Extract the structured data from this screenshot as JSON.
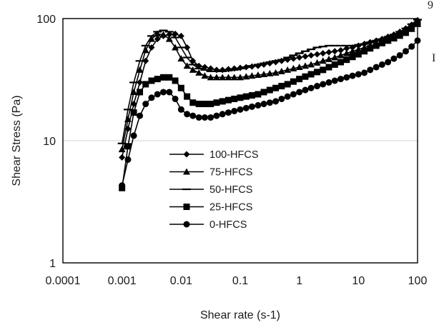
{
  "chart_data": {
    "type": "line",
    "title": "",
    "xlabel": "Shear rate (s-1)",
    "ylabel": "Shear Stress (Pa)",
    "xscale": "log",
    "yscale": "log",
    "xlim": [
      0.0001,
      100
    ],
    "ylim": [
      1,
      100
    ],
    "x_ticks": [
      "0.0001",
      "0.001",
      "0.01",
      "0.1",
      "1",
      "10",
      "100"
    ],
    "y_ticks": [
      "1",
      "10",
      "100"
    ],
    "grid": {
      "y": true,
      "x": false
    },
    "legend": {
      "position": "inside-lower-left"
    },
    "series": [
      {
        "name": "100-HFCS",
        "marker": "diamond",
        "x": [
          0.001,
          0.00126,
          0.00158,
          0.002,
          0.00251,
          0.00316,
          0.00398,
          0.00501,
          0.00631,
          0.00794,
          0.01,
          0.0126,
          0.0158,
          0.02,
          0.0251,
          0.0316,
          0.0398,
          0.0501,
          0.0631,
          0.0794,
          0.1,
          0.126,
          0.158,
          0.2,
          0.251,
          0.316,
          0.398,
          0.501,
          0.631,
          0.794,
          1,
          1.26,
          1.58,
          2,
          2.51,
          3.16,
          3.98,
          5.01,
          6.31,
          7.94,
          10,
          12.6,
          15.8,
          20,
          25.1,
          31.6,
          39.8,
          50.1,
          63.1,
          79.4,
          100
        ],
        "y": [
          7.3,
          12.5,
          20,
          30,
          45,
          58,
          68,
          72,
          74,
          75,
          72,
          58,
          45,
          41,
          40,
          39,
          38,
          38,
          38.5,
          39,
          39.5,
          40,
          40.5,
          41,
          42,
          43,
          44,
          45,
          46,
          47,
          48,
          49,
          50,
          51,
          52,
          53,
          54,
          55,
          57,
          58,
          60,
          62,
          64,
          66,
          68,
          71,
          74,
          78,
          83,
          89,
          97
        ]
      },
      {
        "name": "75-HFCS",
        "marker": "triangle",
        "x": [
          0.001,
          0.00126,
          0.00158,
          0.002,
          0.00251,
          0.00316,
          0.00398,
          0.00501,
          0.00631,
          0.00794,
          0.01,
          0.0126,
          0.0158,
          0.02,
          0.0251,
          0.0316,
          0.0398,
          0.0501,
          0.0631,
          0.0794,
          0.1,
          0.126,
          0.158,
          0.2,
          0.251,
          0.316,
          0.398,
          0.501,
          0.631,
          0.794,
          1,
          1.26,
          1.58,
          2,
          2.51,
          3.16,
          3.98,
          5.01,
          6.31,
          7.94,
          10,
          12.6,
          15.8,
          20,
          25.1,
          31.6,
          39.8,
          50.1,
          63.1,
          79.4,
          100
        ],
        "y": [
          8.5,
          15,
          25,
          38,
          55,
          68,
          75,
          74,
          68,
          58,
          47,
          41,
          38,
          36,
          34,
          33,
          33,
          33,
          33,
          33,
          33,
          33.5,
          34,
          34.5,
          35,
          35.5,
          36,
          37,
          38,
          39,
          40,
          41,
          42,
          43.5,
          45,
          46.5,
          48,
          50,
          52,
          54,
          56,
          58,
          60,
          62,
          64,
          66,
          69,
          72,
          76,
          82,
          90
        ]
      },
      {
        "name": "50-HFCS",
        "marker": "dash",
        "x": [
          0.001,
          0.00126,
          0.00158,
          0.002,
          0.00251,
          0.00316,
          0.00398,
          0.00501,
          0.00631,
          0.00794,
          0.01,
          0.0126,
          0.0158,
          0.02,
          0.0251,
          0.0316,
          0.0398,
          0.0501,
          0.0631,
          0.0794,
          0.1,
          0.126,
          0.158,
          0.2,
          0.251,
          0.316,
          0.398,
          0.501,
          0.631,
          0.794,
          1,
          1.26,
          1.58,
          2,
          2.51,
          3.16,
          3.98,
          5.01,
          6.31,
          7.94,
          10,
          12.6,
          15.8,
          20,
          25.1,
          31.6,
          39.8,
          50.1,
          63.1,
          79.4,
          100
        ],
        "y": [
          9.5,
          18,
          30,
          45,
          60,
          72,
          78,
          80,
          78,
          70,
          58,
          48,
          42,
          39,
          38,
          37,
          37,
          37,
          37.5,
          38,
          39,
          40,
          41,
          42,
          43,
          44,
          45,
          46,
          48,
          50,
          52,
          54,
          56,
          58,
          59,
          60,
          60,
          60,
          60,
          60,
          61,
          62,
          64,
          66,
          68,
          71,
          74,
          78,
          83,
          90,
          98
        ]
      },
      {
        "name": "25-HFCS",
        "marker": "square",
        "x": [
          0.001,
          0.00126,
          0.00158,
          0.002,
          0.00251,
          0.00316,
          0.00398,
          0.00501,
          0.00631,
          0.00794,
          0.01,
          0.0126,
          0.0158,
          0.02,
          0.0251,
          0.0316,
          0.0398,
          0.0501,
          0.0631,
          0.0794,
          0.1,
          0.126,
          0.158,
          0.2,
          0.251,
          0.316,
          0.398,
          0.501,
          0.631,
          0.794,
          1,
          1.26,
          1.58,
          2,
          2.51,
          3.16,
          3.98,
          5.01,
          6.31,
          7.94,
          10,
          12.6,
          15.8,
          20,
          25.1,
          31.6,
          39.8,
          50.1,
          63.1,
          79.4,
          100
        ],
        "y": [
          4.1,
          9,
          17,
          25,
          29,
          31,
          32,
          33,
          33,
          31,
          27,
          23,
          20.5,
          20,
          20,
          20,
          20.5,
          21,
          21.5,
          22,
          22.5,
          23,
          23.5,
          24,
          25,
          26,
          27,
          28,
          29,
          30.5,
          32,
          33.5,
          35,
          36.5,
          38,
          40,
          42,
          44,
          46,
          48.5,
          51,
          54,
          57,
          60,
          63,
          66,
          69,
          73,
          78,
          85,
          92
        ]
      },
      {
        "name": "0-HFCS",
        "marker": "circle",
        "x": [
          0.001,
          0.00126,
          0.00158,
          0.002,
          0.00251,
          0.00316,
          0.00398,
          0.00501,
          0.00631,
          0.00794,
          0.01,
          0.0126,
          0.0158,
          0.02,
          0.0251,
          0.0316,
          0.0398,
          0.0501,
          0.0631,
          0.0794,
          0.1,
          0.126,
          0.158,
          0.2,
          0.251,
          0.316,
          0.398,
          0.501,
          0.631,
          0.794,
          1,
          1.26,
          1.58,
          2,
          2.51,
          3.16,
          3.98,
          5.01,
          6.31,
          7.94,
          10,
          12.6,
          15.8,
          20,
          25.1,
          31.6,
          39.8,
          50.1,
          63.1,
          79.4,
          100
        ],
        "y": [
          4.3,
          7,
          11,
          16,
          20,
          22.5,
          24,
          25,
          25,
          22,
          18,
          16.5,
          16,
          15.5,
          15.5,
          15.5,
          16,
          16.5,
          17,
          17.5,
          18,
          18.5,
          19,
          19.5,
          20,
          20.5,
          21,
          22,
          23,
          24,
          25,
          26,
          27,
          28,
          29,
          30,
          31,
          32,
          33,
          34,
          35,
          36,
          38,
          40,
          42,
          44,
          47,
          50,
          54,
          59,
          66
        ]
      }
    ]
  },
  "page": {
    "top_fragment": "9",
    "side_fragment": "I"
  }
}
